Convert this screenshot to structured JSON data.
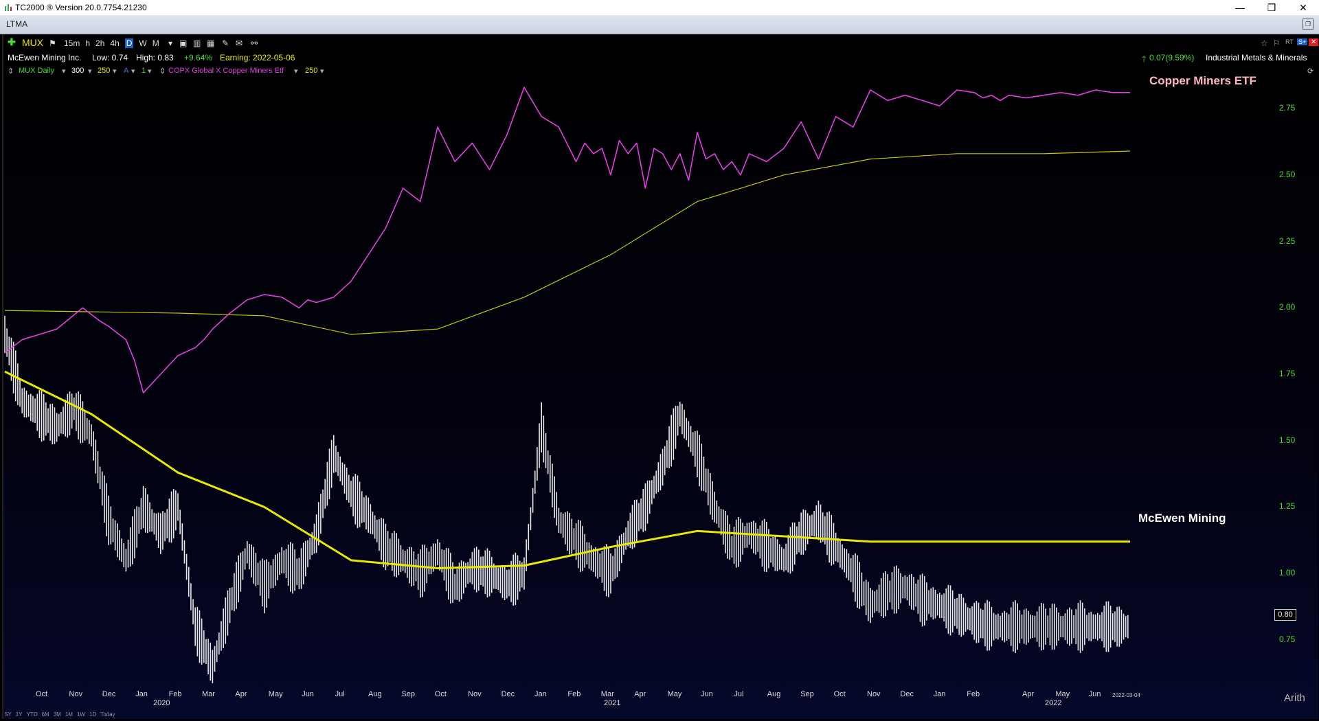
{
  "window": {
    "title": "TC2000 ® Version 20.0.7754.21230"
  },
  "tab": {
    "label": "LTMA"
  },
  "toolbar": {
    "symbol": "MUX",
    "timeframes": [
      "15m",
      "h",
      "2h",
      "4h",
      "D",
      "W",
      "M"
    ],
    "active_timeframe": "D"
  },
  "info": {
    "company": "McEwen Mining Inc.",
    "low": "Low: 0.74",
    "high": "High: 0.83",
    "change_pct": "+9.64%",
    "earning": "Earning: 2022-05-06",
    "change_right": "0.07(9.59%)",
    "industry": "Industrial Metals & Minerals"
  },
  "symbol_row": {
    "primary": "MUX Daily",
    "bars": "300",
    "ma": "250",
    "a": "A",
    "one": "1",
    "overlay": "COPX Global X Copper Miners Etf",
    "overlay_ma": "250"
  },
  "colors": {
    "up": "#4cdc2c",
    "copx": "#e040e0",
    "ma": "#e8e800",
    "price": "#ffffff",
    "annot_copper": "#ffb6c1"
  },
  "chart_data": {
    "type": "line",
    "title": "",
    "annotations": [
      "Copper Miners ETF",
      "McEwen Mining"
    ],
    "y_ticks": [
      "2.75",
      "2.50",
      "2.25",
      "2.00",
      "1.75",
      "1.50",
      "1.25",
      "1.00",
      "0.75"
    ],
    "ylim": [
      0.6,
      2.9
    ],
    "x_ticks": [
      "Oct",
      "Nov",
      "Dec",
      "Jan",
      "Feb",
      "Mar",
      "Apr",
      "May",
      "Jun",
      "Jul",
      "Aug",
      "Sep",
      "Oct",
      "Nov",
      "Dec",
      "Jan",
      "Feb",
      "Mar",
      "Apr",
      "May",
      "Jun",
      "Jul",
      "Aug",
      "Sep",
      "Oct",
      "Nov",
      "Dec",
      "Jan",
      "Feb",
      "Apr",
      "May",
      "Jun"
    ],
    "x_years": [
      "2020",
      "2021",
      "2022"
    ],
    "last_date": "2022-03-04",
    "last_price": "0.80",
    "scale": "Arith",
    "series": [
      {
        "name": "COPX Global X Copper Miners Etf",
        "x": [
          0,
          10,
          20,
          30,
          45,
          55,
          60,
          70,
          75,
          80,
          90,
          100,
          110,
          115,
          120,
          125,
          130,
          140,
          150,
          160,
          170,
          175,
          180,
          190,
          200,
          210,
          220,
          230,
          240,
          250,
          260,
          270,
          280,
          290,
          300,
          310,
          320,
          330,
          335,
          340,
          345,
          350,
          355,
          360,
          365,
          370,
          375,
          380,
          385,
          390,
          395,
          400,
          405,
          410,
          415,
          420,
          425,
          430,
          440,
          450,
          460,
          470,
          480,
          490,
          500,
          510,
          520,
          530,
          540,
          550,
          560,
          565,
          570,
          575,
          580,
          590,
          600,
          610,
          620,
          630,
          640,
          650
        ],
        "y": [
          1.83,
          1.88,
          1.9,
          1.92,
          2.0,
          1.95,
          1.93,
          1.88,
          1.8,
          1.68,
          1.75,
          1.82,
          1.85,
          1.88,
          1.92,
          1.95,
          1.98,
          2.03,
          2.05,
          2.04,
          2.0,
          2.03,
          2.02,
          2.04,
          2.1,
          2.2,
          2.3,
          2.45,
          2.4,
          2.68,
          2.55,
          2.62,
          2.52,
          2.65,
          2.83,
          2.72,
          2.68,
          2.55,
          2.62,
          2.58,
          2.6,
          2.5,
          2.63,
          2.58,
          2.62,
          2.45,
          2.6,
          2.58,
          2.52,
          2.58,
          2.48,
          2.66,
          2.56,
          2.58,
          2.52,
          2.55,
          2.5,
          2.58,
          2.55,
          2.6,
          2.7,
          2.56,
          2.72,
          2.68,
          2.82,
          2.78,
          2.8,
          2.78,
          2.76,
          2.82,
          2.81,
          2.79,
          2.8,
          2.78,
          2.8,
          2.79,
          2.8,
          2.81,
          2.8,
          2.82,
          2.81,
          2.81
        ]
      },
      {
        "name": "COPX MA 250",
        "x": [
          0,
          100,
          150,
          200,
          250,
          300,
          350,
          400,
          450,
          500,
          550,
          600,
          650
        ],
        "y": [
          1.99,
          1.98,
          1.97,
          1.9,
          1.92,
          2.04,
          2.2,
          2.4,
          2.5,
          2.56,
          2.58,
          2.58,
          2.59
        ]
      },
      {
        "name": "MUX Daily",
        "x": [
          0,
          10,
          20,
          30,
          40,
          50,
          60,
          70,
          80,
          90,
          100,
          110,
          120,
          130,
          140,
          150,
          160,
          170,
          180,
          190,
          200,
          210,
          220,
          230,
          240,
          250,
          260,
          270,
          280,
          290,
          300,
          310,
          320,
          330,
          340,
          350,
          360,
          370,
          380,
          390,
          400,
          410,
          420,
          430,
          440,
          450,
          460,
          470,
          480,
          490,
          500,
          510,
          520,
          530,
          540,
          550,
          560,
          570,
          580,
          590,
          600,
          610,
          620,
          630,
          640,
          650
        ],
        "y": [
          1.9,
          1.65,
          1.6,
          1.55,
          1.62,
          1.52,
          1.2,
          1.05,
          1.25,
          1.15,
          1.25,
          0.8,
          0.65,
          0.88,
          1.08,
          0.95,
          1.05,
          1.0,
          1.15,
          1.45,
          1.3,
          1.22,
          1.1,
          1.05,
          1.0,
          1.08,
          0.95,
          1.02,
          1.0,
          0.96,
          1.0,
          1.55,
          1.2,
          1.12,
          1.05,
          1.0,
          1.15,
          1.25,
          1.4,
          1.6,
          1.45,
          1.25,
          1.1,
          1.15,
          1.1,
          1.05,
          1.15,
          1.2,
          1.1,
          1.0,
          0.88,
          0.93,
          0.95,
          0.9,
          0.88,
          0.85,
          0.82,
          0.8,
          0.8,
          0.8,
          0.8,
          0.8,
          0.8,
          0.8,
          0.8,
          0.8
        ]
      },
      {
        "name": "MUX MA 250",
        "x": [
          0,
          50,
          100,
          150,
          200,
          250,
          300,
          350,
          400,
          450,
          500,
          550,
          600,
          650
        ],
        "y": [
          1.76,
          1.6,
          1.38,
          1.25,
          1.05,
          1.02,
          1.03,
          1.1,
          1.16,
          1.14,
          1.12,
          1.12,
          1.12,
          1.12
        ]
      }
    ]
  }
}
